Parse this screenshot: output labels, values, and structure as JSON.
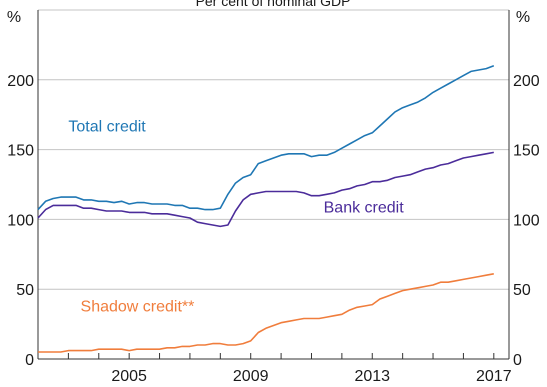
{
  "chart_data": {
    "type": "line",
    "title": "Per cent of nominal GDP",
    "left_unit": "%",
    "right_unit": "%",
    "ylim": [
      0,
      250
    ],
    "yticks": [
      0,
      50,
      100,
      150,
      200
    ],
    "xlim": [
      2002,
      2017.5
    ],
    "xticks": [
      2005,
      2009,
      2013,
      2017
    ],
    "grid": true,
    "series": [
      {
        "name": "Total credit",
        "color": "#1f77b4",
        "x": [
          2002.0,
          2002.25,
          2002.5,
          2002.75,
          2003.0,
          2003.25,
          2003.5,
          2003.75,
          2004.0,
          2004.25,
          2004.5,
          2004.75,
          2005.0,
          2005.25,
          2005.5,
          2005.75,
          2006.0,
          2006.25,
          2006.5,
          2006.75,
          2007.0,
          2007.25,
          2007.5,
          2007.75,
          2008.0,
          2008.25,
          2008.5,
          2008.75,
          2009.0,
          2009.25,
          2009.5,
          2009.75,
          2010.0,
          2010.25,
          2010.5,
          2010.75,
          2011.0,
          2011.25,
          2011.5,
          2011.75,
          2012.0,
          2012.25,
          2012.5,
          2012.75,
          2013.0,
          2013.25,
          2013.5,
          2013.75,
          2014.0,
          2014.25,
          2014.5,
          2014.75,
          2015.0,
          2015.25,
          2015.5,
          2015.75,
          2016.0,
          2016.25,
          2016.5,
          2016.75,
          2017.0
        ],
        "y": [
          107,
          113,
          115,
          116,
          116,
          116,
          114,
          114,
          113,
          113,
          112,
          113,
          111,
          112,
          112,
          111,
          111,
          111,
          110,
          110,
          108,
          108,
          107,
          107,
          108,
          118,
          126,
          130,
          132,
          140,
          142,
          144,
          146,
          147,
          147,
          147,
          145,
          146,
          146,
          148,
          151,
          154,
          157,
          160,
          162,
          167,
          172,
          177,
          180,
          182,
          184,
          187,
          191,
          194,
          197,
          200,
          203,
          206,
          207,
          208,
          210
        ]
      },
      {
        "name": "Bank credit",
        "color": "#4b2c9a",
        "x": [
          2002.0,
          2002.25,
          2002.5,
          2002.75,
          2003.0,
          2003.25,
          2003.5,
          2003.75,
          2004.0,
          2004.25,
          2004.5,
          2004.75,
          2005.0,
          2005.25,
          2005.5,
          2005.75,
          2006.0,
          2006.25,
          2006.5,
          2006.75,
          2007.0,
          2007.25,
          2007.5,
          2007.75,
          2008.0,
          2008.25,
          2008.5,
          2008.75,
          2009.0,
          2009.25,
          2009.5,
          2009.75,
          2010.0,
          2010.25,
          2010.5,
          2010.75,
          2011.0,
          2011.25,
          2011.5,
          2011.75,
          2012.0,
          2012.25,
          2012.5,
          2012.75,
          2013.0,
          2013.25,
          2013.5,
          2013.75,
          2014.0,
          2014.25,
          2014.5,
          2014.75,
          2015.0,
          2015.25,
          2015.5,
          2015.75,
          2016.0,
          2016.25,
          2016.5,
          2016.75,
          2017.0
        ],
        "y": [
          101,
          107,
          110,
          110,
          110,
          110,
          108,
          108,
          107,
          106,
          106,
          106,
          105,
          105,
          105,
          104,
          104,
          104,
          103,
          102,
          101,
          98,
          97,
          96,
          95,
          96,
          106,
          114,
          118,
          119,
          120,
          120,
          120,
          120,
          120,
          119,
          117,
          117,
          118,
          119,
          121,
          122,
          124,
          125,
          127,
          127,
          128,
          130,
          131,
          132,
          134,
          136,
          137,
          139,
          140,
          142,
          144,
          145,
          146,
          147,
          148
        ]
      },
      {
        "name": "Shadow credit**",
        "color": "#f07d3c",
        "x": [
          2002.0,
          2002.25,
          2002.5,
          2002.75,
          2003.0,
          2003.25,
          2003.5,
          2003.75,
          2004.0,
          2004.25,
          2004.5,
          2004.75,
          2005.0,
          2005.25,
          2005.5,
          2005.75,
          2006.0,
          2006.25,
          2006.5,
          2006.75,
          2007.0,
          2007.25,
          2007.5,
          2007.75,
          2008.0,
          2008.25,
          2008.5,
          2008.75,
          2009.0,
          2009.25,
          2009.5,
          2009.75,
          2010.0,
          2010.25,
          2010.5,
          2010.75,
          2011.0,
          2011.25,
          2011.5,
          2011.75,
          2012.0,
          2012.25,
          2012.5,
          2012.75,
          2013.0,
          2013.25,
          2013.5,
          2013.75,
          2014.0,
          2014.25,
          2014.5,
          2014.75,
          2015.0,
          2015.25,
          2015.5,
          2015.75,
          2016.0,
          2016.25,
          2016.5,
          2016.75,
          2017.0
        ],
        "y": [
          5,
          5,
          5,
          5,
          6,
          6,
          6,
          6,
          7,
          7,
          7,
          7,
          6,
          7,
          7,
          7,
          7,
          8,
          8,
          9,
          9,
          10,
          10,
          11,
          11,
          10,
          10,
          11,
          13,
          19,
          22,
          24,
          26,
          27,
          28,
          29,
          29,
          29,
          30,
          31,
          32,
          35,
          37,
          38,
          39,
          43,
          45,
          47,
          49,
          50,
          51,
          52,
          53,
          55,
          55,
          56,
          57,
          58,
          59,
          60,
          61
        ]
      }
    ]
  }
}
